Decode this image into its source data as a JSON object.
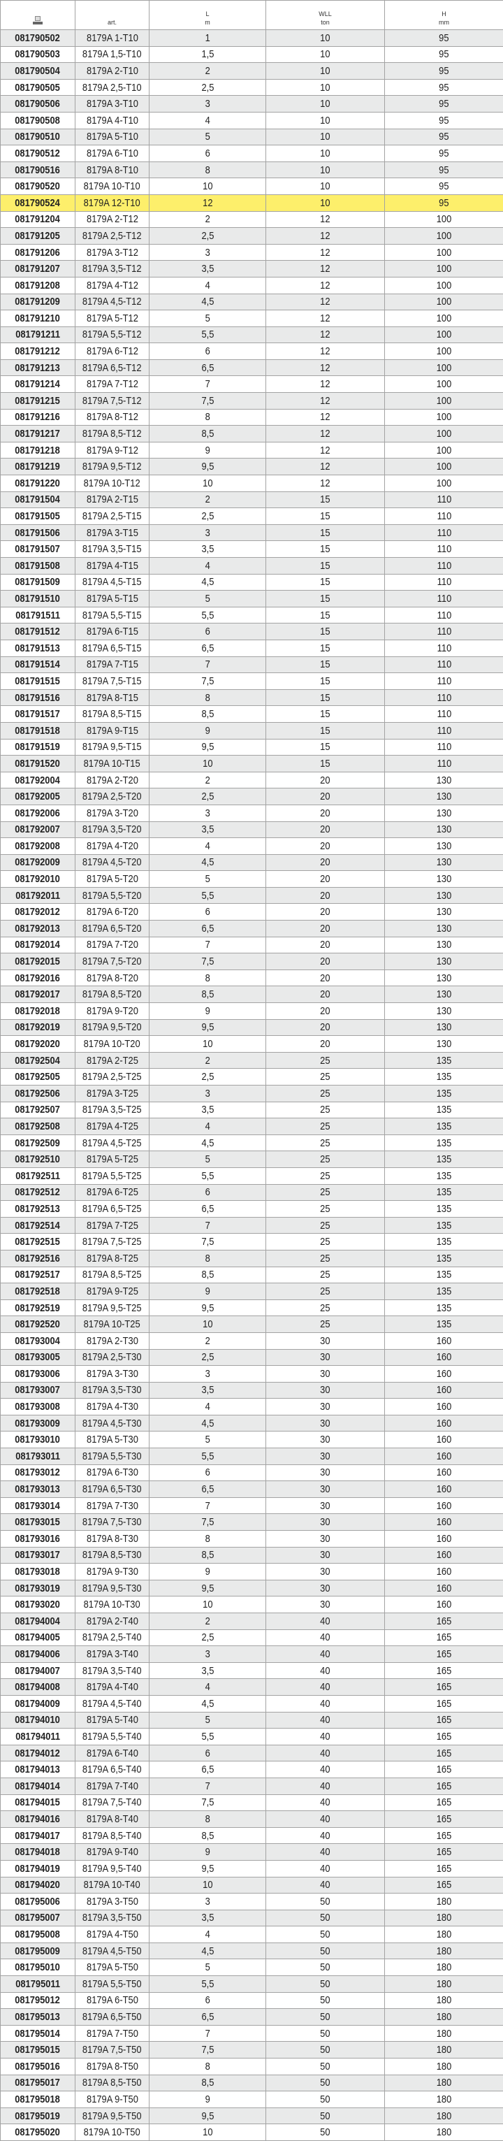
{
  "colors": {
    "highlight": "#fdef6b",
    "alt_row": "#e9eaea",
    "border": "#a3a3a3"
  },
  "header": {
    "icon": "catalog-icon",
    "art": "art.",
    "L": {
      "name": "L",
      "unit": "m"
    },
    "WLL": {
      "name": "WLL",
      "unit": "ton"
    },
    "H": {
      "name": "H",
      "unit": "mm"
    }
  },
  "highlighted_code": "081790524",
  "rows": [
    [
      "081790502",
      "8179A 1-T10",
      "1",
      "10",
      "95"
    ],
    [
      "081790503",
      "8179A 1,5-T10",
      "1,5",
      "10",
      "95"
    ],
    [
      "081790504",
      "8179A 2-T10",
      "2",
      "10",
      "95"
    ],
    [
      "081790505",
      "8179A 2,5-T10",
      "2,5",
      "10",
      "95"
    ],
    [
      "081790506",
      "8179A 3-T10",
      "3",
      "10",
      "95"
    ],
    [
      "081790508",
      "8179A 4-T10",
      "4",
      "10",
      "95"
    ],
    [
      "081790510",
      "8179A 5-T10",
      "5",
      "10",
      "95"
    ],
    [
      "081790512",
      "8179A 6-T10",
      "6",
      "10",
      "95"
    ],
    [
      "081790516",
      "8179A 8-T10",
      "8",
      "10",
      "95"
    ],
    [
      "081790520",
      "8179A 10-T10",
      "10",
      "10",
      "95"
    ],
    [
      "081790524",
      "8179A 12-T10",
      "12",
      "10",
      "95"
    ],
    [
      "081791204",
      "8179A 2-T12",
      "2",
      "12",
      "100"
    ],
    [
      "081791205",
      "8179A 2,5-T12",
      "2,5",
      "12",
      "100"
    ],
    [
      "081791206",
      "8179A 3-T12",
      "3",
      "12",
      "100"
    ],
    [
      "081791207",
      "8179A 3,5-T12",
      "3,5",
      "12",
      "100"
    ],
    [
      "081791208",
      "8179A 4-T12",
      "4",
      "12",
      "100"
    ],
    [
      "081791209",
      "8179A 4,5-T12",
      "4,5",
      "12",
      "100"
    ],
    [
      "081791210",
      "8179A 5-T12",
      "5",
      "12",
      "100"
    ],
    [
      "081791211",
      "8179A 5,5-T12",
      "5,5",
      "12",
      "100"
    ],
    [
      "081791212",
      "8179A 6-T12",
      "6",
      "12",
      "100"
    ],
    [
      "081791213",
      "8179A 6,5-T12",
      "6,5",
      "12",
      "100"
    ],
    [
      "081791214",
      "8179A 7-T12",
      "7",
      "12",
      "100"
    ],
    [
      "081791215",
      "8179A 7,5-T12",
      "7,5",
      "12",
      "100"
    ],
    [
      "081791216",
      "8179A 8-T12",
      "8",
      "12",
      "100"
    ],
    [
      "081791217",
      "8179A 8,5-T12",
      "8,5",
      "12",
      "100"
    ],
    [
      "081791218",
      "8179A 9-T12",
      "9",
      "12",
      "100"
    ],
    [
      "081791219",
      "8179A 9,5-T12",
      "9,5",
      "12",
      "100"
    ],
    [
      "081791220",
      "8179A 10-T12",
      "10",
      "12",
      "100"
    ],
    [
      "081791504",
      "8179A 2-T15",
      "2",
      "15",
      "110"
    ],
    [
      "081791505",
      "8179A 2,5-T15",
      "2,5",
      "15",
      "110"
    ],
    [
      "081791506",
      "8179A 3-T15",
      "3",
      "15",
      "110"
    ],
    [
      "081791507",
      "8179A 3,5-T15",
      "3,5",
      "15",
      "110"
    ],
    [
      "081791508",
      "8179A 4-T15",
      "4",
      "15",
      "110"
    ],
    [
      "081791509",
      "8179A 4,5-T15",
      "4,5",
      "15",
      "110"
    ],
    [
      "081791510",
      "8179A 5-T15",
      "5",
      "15",
      "110"
    ],
    [
      "081791511",
      "8179A 5,5-T15",
      "5,5",
      "15",
      "110"
    ],
    [
      "081791512",
      "8179A 6-T15",
      "6",
      "15",
      "110"
    ],
    [
      "081791513",
      "8179A 6,5-T15",
      "6,5",
      "15",
      "110"
    ],
    [
      "081791514",
      "8179A 7-T15",
      "7",
      "15",
      "110"
    ],
    [
      "081791515",
      "8179A 7,5-T15",
      "7,5",
      "15",
      "110"
    ],
    [
      "081791516",
      "8179A 8-T15",
      "8",
      "15",
      "110"
    ],
    [
      "081791517",
      "8179A 8,5-T15",
      "8,5",
      "15",
      "110"
    ],
    [
      "081791518",
      "8179A 9-T15",
      "9",
      "15",
      "110"
    ],
    [
      "081791519",
      "8179A 9,5-T15",
      "9,5",
      "15",
      "110"
    ],
    [
      "081791520",
      "8179A 10-T15",
      "10",
      "15",
      "110"
    ],
    [
      "081792004",
      "8179A 2-T20",
      "2",
      "20",
      "130"
    ],
    [
      "081792005",
      "8179A 2,5-T20",
      "2,5",
      "20",
      "130"
    ],
    [
      "081792006",
      "8179A 3-T20",
      "3",
      "20",
      "130"
    ],
    [
      "081792007",
      "8179A 3,5-T20",
      "3,5",
      "20",
      "130"
    ],
    [
      "081792008",
      "8179A 4-T20",
      "4",
      "20",
      "130"
    ],
    [
      "081792009",
      "8179A 4,5-T20",
      "4,5",
      "20",
      "130"
    ],
    [
      "081792010",
      "8179A 5-T20",
      "5",
      "20",
      "130"
    ],
    [
      "081792011",
      "8179A 5,5-T20",
      "5,5",
      "20",
      "130"
    ],
    [
      "081792012",
      "8179A 6-T20",
      "6",
      "20",
      "130"
    ],
    [
      "081792013",
      "8179A 6,5-T20",
      "6,5",
      "20",
      "130"
    ],
    [
      "081792014",
      "8179A 7-T20",
      "7",
      "20",
      "130"
    ],
    [
      "081792015",
      "8179A 7,5-T20",
      "7,5",
      "20",
      "130"
    ],
    [
      "081792016",
      "8179A 8-T20",
      "8",
      "20",
      "130"
    ],
    [
      "081792017",
      "8179A 8,5-T20",
      "8,5",
      "20",
      "130"
    ],
    [
      "081792018",
      "8179A 9-T20",
      "9",
      "20",
      "130"
    ],
    [
      "081792019",
      "8179A 9,5-T20",
      "9,5",
      "20",
      "130"
    ],
    [
      "081792020",
      "8179A 10-T20",
      "10",
      "20",
      "130"
    ],
    [
      "081792504",
      "8179A 2-T25",
      "2",
      "25",
      "135"
    ],
    [
      "081792505",
      "8179A 2,5-T25",
      "2,5",
      "25",
      "135"
    ],
    [
      "081792506",
      "8179A 3-T25",
      "3",
      "25",
      "135"
    ],
    [
      "081792507",
      "8179A 3,5-T25",
      "3,5",
      "25",
      "135"
    ],
    [
      "081792508",
      "8179A 4-T25",
      "4",
      "25",
      "135"
    ],
    [
      "081792509",
      "8179A 4,5-T25",
      "4,5",
      "25",
      "135"
    ],
    [
      "081792510",
      "8179A 5-T25",
      "5",
      "25",
      "135"
    ],
    [
      "081792511",
      "8179A 5,5-T25",
      "5,5",
      "25",
      "135"
    ],
    [
      "081792512",
      "8179A 6-T25",
      "6",
      "25",
      "135"
    ],
    [
      "081792513",
      "8179A 6,5-T25",
      "6,5",
      "25",
      "135"
    ],
    [
      "081792514",
      "8179A 7-T25",
      "7",
      "25",
      "135"
    ],
    [
      "081792515",
      "8179A 7,5-T25",
      "7,5",
      "25",
      "135"
    ],
    [
      "081792516",
      "8179A 8-T25",
      "8",
      "25",
      "135"
    ],
    [
      "081792517",
      "8179A 8,5-T25",
      "8,5",
      "25",
      "135"
    ],
    [
      "081792518",
      "8179A 9-T25",
      "9",
      "25",
      "135"
    ],
    [
      "081792519",
      "8179A 9,5-T25",
      "9,5",
      "25",
      "135"
    ],
    [
      "081792520",
      "8179A 10-T25",
      "10",
      "25",
      "135"
    ],
    [
      "081793004",
      "8179A 2-T30",
      "2",
      "30",
      "160"
    ],
    [
      "081793005",
      "8179A 2,5-T30",
      "2,5",
      "30",
      "160"
    ],
    [
      "081793006",
      "8179A 3-T30",
      "3",
      "30",
      "160"
    ],
    [
      "081793007",
      "8179A 3,5-T30",
      "3,5",
      "30",
      "160"
    ],
    [
      "081793008",
      "8179A 4-T30",
      "4",
      "30",
      "160"
    ],
    [
      "081793009",
      "8179A 4,5-T30",
      "4,5",
      "30",
      "160"
    ],
    [
      "081793010",
      "8179A 5-T30",
      "5",
      "30",
      "160"
    ],
    [
      "081793011",
      "8179A 5,5-T30",
      "5,5",
      "30",
      "160"
    ],
    [
      "081793012",
      "8179A 6-T30",
      "6",
      "30",
      "160"
    ],
    [
      "081793013",
      "8179A 6,5-T30",
      "6,5",
      "30",
      "160"
    ],
    [
      "081793014",
      "8179A 7-T30",
      "7",
      "30",
      "160"
    ],
    [
      "081793015",
      "8179A 7,5-T30",
      "7,5",
      "30",
      "160"
    ],
    [
      "081793016",
      "8179A 8-T30",
      "8",
      "30",
      "160"
    ],
    [
      "081793017",
      "8179A 8,5-T30",
      "8,5",
      "30",
      "160"
    ],
    [
      "081793018",
      "8179A 9-T30",
      "9",
      "30",
      "160"
    ],
    [
      "081793019",
      "8179A 9,5-T30",
      "9,5",
      "30",
      "160"
    ],
    [
      "081793020",
      "8179A 10-T30",
      "10",
      "30",
      "160"
    ],
    [
      "081794004",
      "8179A 2-T40",
      "2",
      "40",
      "165"
    ],
    [
      "081794005",
      "8179A 2,5-T40",
      "2,5",
      "40",
      "165"
    ],
    [
      "081794006",
      "8179A 3-T40",
      "3",
      "40",
      "165"
    ],
    [
      "081794007",
      "8179A 3,5-T40",
      "3,5",
      "40",
      "165"
    ],
    [
      "081794008",
      "8179A 4-T40",
      "4",
      "40",
      "165"
    ],
    [
      "081794009",
      "8179A 4,5-T40",
      "4,5",
      "40",
      "165"
    ],
    [
      "081794010",
      "8179A 5-T40",
      "5",
      "40",
      "165"
    ],
    [
      "081794011",
      "8179A 5,5-T40",
      "5,5",
      "40",
      "165"
    ],
    [
      "081794012",
      "8179A 6-T40",
      "6",
      "40",
      "165"
    ],
    [
      "081794013",
      "8179A 6,5-T40",
      "6,5",
      "40",
      "165"
    ],
    [
      "081794014",
      "8179A 7-T40",
      "7",
      "40",
      "165"
    ],
    [
      "081794015",
      "8179A 7,5-T40",
      "7,5",
      "40",
      "165"
    ],
    [
      "081794016",
      "8179A 8-T40",
      "8",
      "40",
      "165"
    ],
    [
      "081794017",
      "8179A 8,5-T40",
      "8,5",
      "40",
      "165"
    ],
    [
      "081794018",
      "8179A 9-T40",
      "9",
      "40",
      "165"
    ],
    [
      "081794019",
      "8179A 9,5-T40",
      "9,5",
      "40",
      "165"
    ],
    [
      "081794020",
      "8179A 10-T40",
      "10",
      "40",
      "165"
    ],
    [
      "081795006",
      "8179A 3-T50",
      "3",
      "50",
      "180"
    ],
    [
      "081795007",
      "8179A 3,5-T50",
      "3,5",
      "50",
      "180"
    ],
    [
      "081795008",
      "8179A 4-T50",
      "4",
      "50",
      "180"
    ],
    [
      "081795009",
      "8179A 4,5-T50",
      "4,5",
      "50",
      "180"
    ],
    [
      "081795010",
      "8179A 5-T50",
      "5",
      "50",
      "180"
    ],
    [
      "081795011",
      "8179A 5,5-T50",
      "5,5",
      "50",
      "180"
    ],
    [
      "081795012",
      "8179A 6-T50",
      "6",
      "50",
      "180"
    ],
    [
      "081795013",
      "8179A 6,5-T50",
      "6,5",
      "50",
      "180"
    ],
    [
      "081795014",
      "8179A 7-T50",
      "7",
      "50",
      "180"
    ],
    [
      "081795015",
      "8179A 7,5-T50",
      "7,5",
      "50",
      "180"
    ],
    [
      "081795016",
      "8179A 8-T50",
      "8",
      "50",
      "180"
    ],
    [
      "081795017",
      "8179A 8,5-T50",
      "8,5",
      "50",
      "180"
    ],
    [
      "081795018",
      "8179A 9-T50",
      "9",
      "50",
      "180"
    ],
    [
      "081795019",
      "8179A 9,5-T50",
      "9,5",
      "50",
      "180"
    ],
    [
      "081795020",
      "8179A 10-T50",
      "10",
      "50",
      "180"
    ]
  ]
}
